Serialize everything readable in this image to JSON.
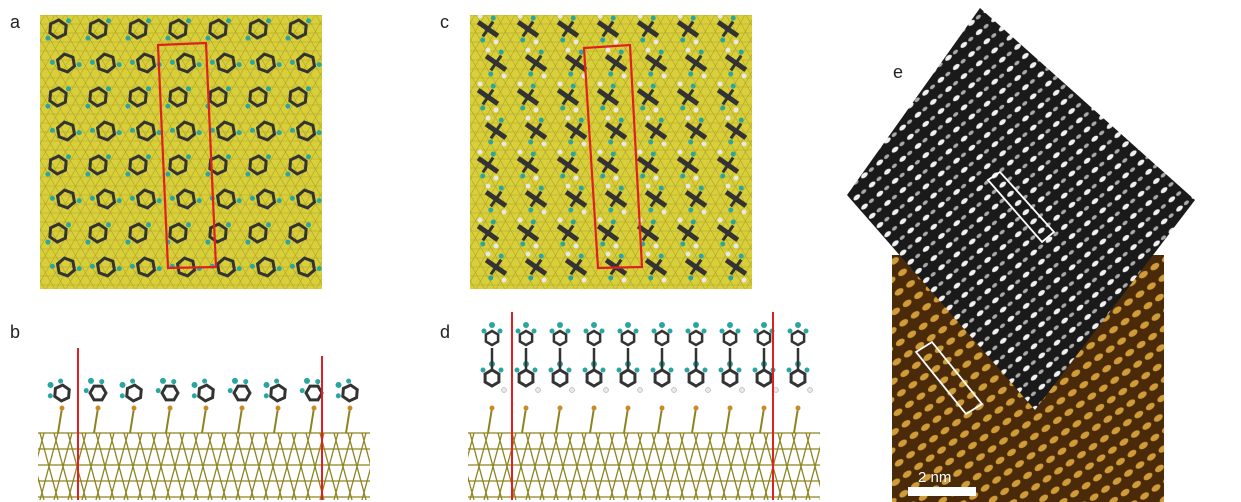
{
  "panels": {
    "a": {
      "label": "a"
    },
    "b": {
      "label": "b"
    },
    "c": {
      "label": "c"
    },
    "d": {
      "label": "d"
    },
    "e": {
      "label": "e",
      "scale_bar": "2 nm"
    }
  },
  "colors": {
    "gold_surface": "#d8cf3a",
    "gold_dark": "#8c8420",
    "unit_cell": "#e02020",
    "carbon": "#333333",
    "nitrogen": "#2aa6a0",
    "hydrogen": "#e8e8e8",
    "stm_dark": "#4a2a08",
    "stm_bright": "#e8b040",
    "sim_dark": "#1a1a1a",
    "sim_bright": "#f0f0f0"
  }
}
